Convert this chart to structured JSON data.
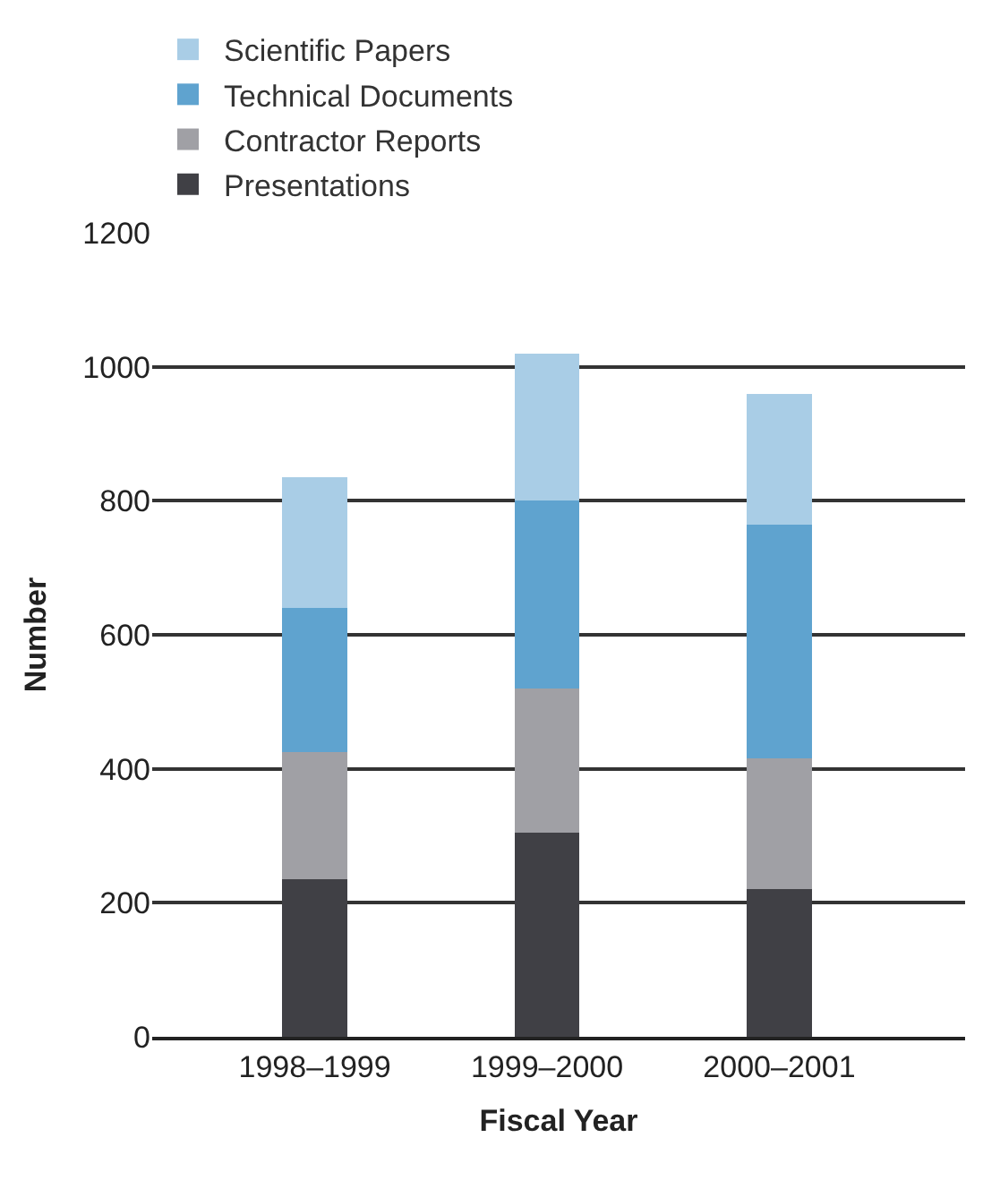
{
  "chart_data": {
    "type": "bar",
    "stacked": true,
    "xlabel": "Fiscal Year",
    "ylabel": "Number",
    "categories": [
      "1998–1999",
      "1999–2000",
      "2000–2001"
    ],
    "series": [
      {
        "name": "Presentations",
        "color": "#404045",
        "values": [
          235,
          305,
          220
        ]
      },
      {
        "name": "Contractor Reports",
        "color": "#a0a0a5",
        "values": [
          190,
          215,
          195
        ]
      },
      {
        "name": "Technical Documents",
        "color": "#5fa3cf",
        "values": [
          215,
          280,
          350
        ]
      },
      {
        "name": "Scientific Papers",
        "color": "#a9cde6",
        "values": [
          195,
          220,
          195
        ]
      }
    ],
    "ylim": [
      0,
      1200
    ],
    "yticks": [
      0,
      200,
      400,
      600,
      800,
      1000,
      1200
    ],
    "grid": "y",
    "legend": "top"
  }
}
